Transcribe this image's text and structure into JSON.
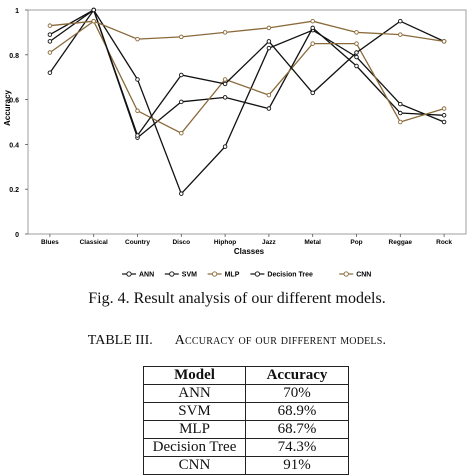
{
  "chart_data": {
    "type": "line",
    "title": "",
    "xlabel": "Classes",
    "ylabel": "Accuracy",
    "ylim": [
      0,
      1
    ],
    "yticks": [
      "0",
      "0.2",
      "0.4",
      "0.6",
      "0.8",
      "1"
    ],
    "categories": [
      "Blues",
      "Classical",
      "Country",
      "Disco",
      "Hiphop",
      "Jazz",
      "Metal",
      "Pop",
      "Reggae",
      "Rock"
    ],
    "legend_position": "bottom",
    "series": [
      {
        "name": "ANN",
        "color": "#111111",
        "marker": "o",
        "values": [
          0.72,
          1.0,
          0.69,
          0.18,
          0.39,
          0.83,
          0.91,
          0.79,
          0.58,
          0.5
        ]
      },
      {
        "name": "SVM",
        "color": "#111111",
        "marker": "o",
        "values": [
          0.86,
          1.0,
          0.43,
          0.59,
          0.61,
          0.56,
          0.92,
          0.75,
          0.54,
          0.53
        ]
      },
      {
        "name": "MLP",
        "color": "#8a6a3a",
        "marker": "o",
        "values": [
          0.81,
          0.95,
          0.55,
          0.45,
          0.69,
          0.62,
          0.85,
          0.85,
          0.5,
          0.56
        ]
      },
      {
        "name": "Decision Tree",
        "color": "#111111",
        "marker": "o",
        "values": [
          0.89,
          1.0,
          0.44,
          0.71,
          0.67,
          0.86,
          0.63,
          0.81,
          0.95,
          0.86
        ]
      },
      {
        "name": "CNN",
        "color": "#8a6a3a",
        "marker": "o",
        "values": [
          0.93,
          0.95,
          0.87,
          0.88,
          0.9,
          0.92,
          0.95,
          0.9,
          0.89,
          0.86
        ]
      }
    ]
  },
  "figure": {
    "caption": "Fig. 4.  Result analysis of our different models."
  },
  "table": {
    "label": "TABLE III.",
    "title": "Accuracy of our different models.",
    "headers": [
      "Model",
      "Accuracy"
    ],
    "rows": [
      [
        "ANN",
        "70%"
      ],
      [
        "SVM",
        "68.9%"
      ],
      [
        "MLP",
        "68.7%"
      ],
      [
        "Decision Tree",
        "74.3%"
      ],
      [
        "CNN",
        "91%"
      ]
    ]
  }
}
